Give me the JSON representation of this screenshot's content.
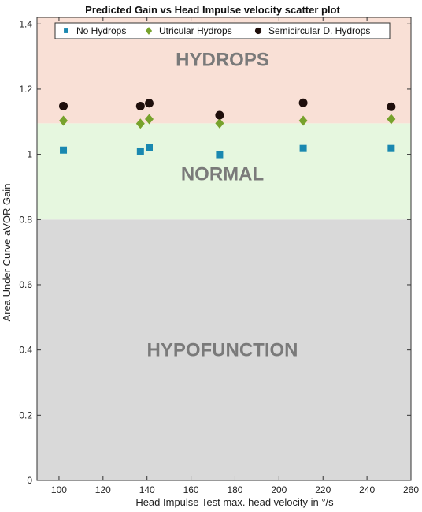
{
  "chart_data": {
    "type": "scatter",
    "title": "Predicted Gain vs Head Impulse velocity scatter plot",
    "xlabel": "Head Impulse Test max. head velocity in °/s",
    "ylabel": "Area Under Curve aVOR Gain",
    "xlim": [
      90,
      260
    ],
    "ylim": [
      0,
      1.42
    ],
    "x_ticks": [
      "100",
      "120",
      "140",
      "160",
      "180",
      "200",
      "220",
      "240",
      "260"
    ],
    "y_ticks": [
      "0",
      "0.2",
      "0.4",
      "0.6",
      "0.8",
      "1",
      "1.2",
      "1.4"
    ],
    "regions": [
      {
        "label": "HYPOFUNCTION",
        "y_from": 0,
        "y_to": 0.8,
        "color": "#d9d9d9",
        "label_y": 0.4
      },
      {
        "label": "NORMAL",
        "y_from": 0.8,
        "y_to": 1.095,
        "color": "#e6f7df",
        "label_y": 0.94
      },
      {
        "label": "HYDROPS",
        "y_from": 1.095,
        "y_to": 1.42,
        "color": "#f9e0d6",
        "label_y": 1.29
      }
    ],
    "legend_position": "top",
    "series": [
      {
        "name": "No Hydrops",
        "marker": "square",
        "color": "#1a88b0",
        "x": [
          102,
          137,
          141,
          173,
          211,
          251
        ],
        "y": [
          1.013,
          1.01,
          1.022,
          0.999,
          1.018,
          1.018
        ]
      },
      {
        "name": "Utricular Hydrops",
        "marker": "diamond",
        "color": "#77a22c",
        "x": [
          102,
          137,
          141,
          173,
          211,
          251
        ],
        "y": [
          1.103,
          1.094,
          1.108,
          1.095,
          1.103,
          1.108
        ]
      },
      {
        "name": "Semicircular D. Hydrops",
        "marker": "circle",
        "color": "#1f0f0c",
        "x": [
          102,
          137,
          141,
          173,
          211,
          251
        ],
        "y": [
          1.148,
          1.148,
          1.157,
          1.12,
          1.158,
          1.146
        ]
      }
    ]
  }
}
